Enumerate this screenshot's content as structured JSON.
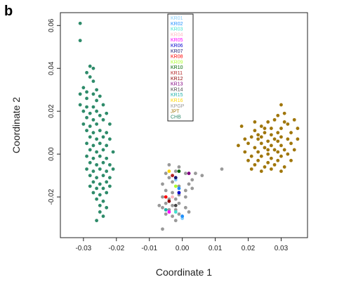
{
  "panel_label": "b",
  "chart_data": {
    "type": "scatter",
    "title": "",
    "xlabel": "Coordinate 1",
    "ylabel": "Coordinate 2",
    "xlim": [
      -0.037,
      0.038
    ],
    "ylim": [
      -0.039,
      0.066
    ],
    "x_ticks": [
      -0.03,
      -0.02,
      -0.01,
      0.0,
      0.01,
      0.02,
      0.03
    ],
    "x_tick_labels": [
      "-0.03",
      "-0.02",
      "-0.01",
      "0.00",
      "0.01",
      "0.02",
      "0.03"
    ],
    "y_ticks": [
      -0.02,
      0.0,
      0.02,
      0.04,
      0.06
    ],
    "y_tick_labels": [
      "-0.02",
      "0.00",
      "0.02",
      "0.04",
      "0.06"
    ],
    "grid": false,
    "legend_position": "top-center",
    "legend": [
      {
        "label": "KR01",
        "color": "#87cefa"
      },
      {
        "label": "KR02",
        "color": "#1e90ff"
      },
      {
        "label": "KR03",
        "color": "#40e0d0"
      },
      {
        "label": "KR04",
        "color": "#ffb6c1"
      },
      {
        "label": "KR05",
        "color": "#ff00ff"
      },
      {
        "label": "KR06",
        "color": "#0000cd"
      },
      {
        "label": "KR07",
        "color": "#191970"
      },
      {
        "label": "KR08",
        "color": "#ff0000"
      },
      {
        "label": "KR09",
        "color": "#adff2f"
      },
      {
        "label": "KR10",
        "color": "#006400"
      },
      {
        "label": "KR11",
        "color": "#b22222"
      },
      {
        "label": "KR12",
        "color": "#8b0000"
      },
      {
        "label": "KR13",
        "color": "#800080"
      },
      {
        "label": "KR14",
        "color": "#444444"
      },
      {
        "label": "KR15",
        "color": "#20b2aa"
      },
      {
        "label": "KR16",
        "color": "#ffd700"
      },
      {
        "label": "KPGP",
        "color": "#999999"
      },
      {
        "label": "JPT",
        "color": "#a0760a"
      },
      {
        "label": "CHB",
        "color": "#2e8b6a"
      }
    ],
    "series": [
      {
        "group": "CHB",
        "color": "#2e8b6a",
        "points": [
          [
            -0.031,
            0.061
          ],
          [
            -0.031,
            0.053
          ],
          [
            -0.028,
            0.041
          ],
          [
            -0.027,
            0.04
          ],
          [
            -0.029,
            0.038
          ],
          [
            -0.028,
            0.036
          ],
          [
            -0.027,
            0.034
          ],
          [
            -0.026,
            0.03
          ],
          [
            -0.03,
            0.031
          ],
          [
            -0.029,
            0.029
          ],
          [
            -0.031,
            0.028
          ],
          [
            -0.027,
            0.028
          ],
          [
            -0.025,
            0.027
          ],
          [
            -0.029,
            0.026
          ],
          [
            -0.026,
            0.025
          ],
          [
            -0.031,
            0.023
          ],
          [
            -0.029,
            0.022
          ],
          [
            -0.027,
            0.022
          ],
          [
            -0.024,
            0.023
          ],
          [
            -0.03,
            0.02
          ],
          [
            -0.028,
            0.019
          ],
          [
            -0.026,
            0.02
          ],
          [
            -0.025,
            0.018
          ],
          [
            -0.023,
            0.019
          ],
          [
            -0.029,
            0.017
          ],
          [
            -0.027,
            0.016
          ],
          [
            -0.024,
            0.016
          ],
          [
            -0.03,
            0.014
          ],
          [
            -0.028,
            0.013
          ],
          [
            -0.026,
            0.014
          ],
          [
            -0.022,
            0.014
          ],
          [
            -0.029,
            0.011
          ],
          [
            -0.027,
            0.01
          ],
          [
            -0.025,
            0.011
          ],
          [
            -0.023,
            0.01
          ],
          [
            -0.028,
            0.008
          ],
          [
            -0.026,
            0.007
          ],
          [
            -0.024,
            0.008
          ],
          [
            -0.022,
            0.007
          ],
          [
            -0.029,
            0.005
          ],
          [
            -0.027,
            0.004
          ],
          [
            -0.025,
            0.005
          ],
          [
            -0.023,
            0.004
          ],
          [
            -0.028,
            0.002
          ],
          [
            -0.026,
            0.001
          ],
          [
            -0.024,
            0.002
          ],
          [
            -0.021,
            0.001
          ],
          [
            -0.029,
            -0.001
          ],
          [
            -0.027,
            -0.002
          ],
          [
            -0.025,
            -0.001
          ],
          [
            -0.023,
            -0.002
          ],
          [
            -0.028,
            -0.004
          ],
          [
            -0.026,
            -0.005
          ],
          [
            -0.024,
            -0.004
          ],
          [
            -0.022,
            -0.005
          ],
          [
            -0.029,
            -0.007
          ],
          [
            -0.027,
            -0.008
          ],
          [
            -0.025,
            -0.007
          ],
          [
            -0.023,
            -0.008
          ],
          [
            -0.021,
            -0.007
          ],
          [
            -0.028,
            -0.01
          ],
          [
            -0.026,
            -0.011
          ],
          [
            -0.024,
            -0.01
          ],
          [
            -0.022,
            -0.011
          ],
          [
            -0.027,
            -0.013
          ],
          [
            -0.025,
            -0.014
          ],
          [
            -0.023,
            -0.013
          ],
          [
            -0.028,
            -0.015
          ],
          [
            -0.026,
            -0.016
          ],
          [
            -0.024,
            -0.016
          ],
          [
            -0.022,
            -0.015
          ],
          [
            -0.027,
            -0.018
          ],
          [
            -0.025,
            -0.019
          ],
          [
            -0.023,
            -0.018
          ],
          [
            -0.026,
            -0.021
          ],
          [
            -0.024,
            -0.022
          ],
          [
            -0.025,
            -0.024
          ],
          [
            -0.023,
            -0.025
          ],
          [
            -0.025,
            -0.027
          ],
          [
            -0.024,
            -0.029
          ],
          [
            -0.026,
            -0.031
          ]
        ]
      },
      {
        "group": "JPT",
        "color": "#a0760a",
        "points": [
          [
            0.03,
            0.023
          ],
          [
            0.031,
            0.019
          ],
          [
            0.029,
            0.018
          ],
          [
            0.034,
            0.016
          ],
          [
            0.022,
            0.015
          ],
          [
            0.026,
            0.015
          ],
          [
            0.028,
            0.016
          ],
          [
            0.032,
            0.014
          ],
          [
            0.024,
            0.013
          ],
          [
            0.027,
            0.012
          ],
          [
            0.03,
            0.012
          ],
          [
            0.035,
            0.012
          ],
          [
            0.018,
            0.013
          ],
          [
            0.022,
            0.011
          ],
          [
            0.025,
            0.01
          ],
          [
            0.029,
            0.01
          ],
          [
            0.033,
            0.01
          ],
          [
            0.021,
            0.008
          ],
          [
            0.024,
            0.008
          ],
          [
            0.027,
            0.009
          ],
          [
            0.03,
            0.008
          ],
          [
            0.019,
            0.007
          ],
          [
            0.023,
            0.007
          ],
          [
            0.026,
            0.006
          ],
          [
            0.029,
            0.006
          ],
          [
            0.032,
            0.007
          ],
          [
            0.035,
            0.007
          ],
          [
            0.02,
            0.005
          ],
          [
            0.024,
            0.005
          ],
          [
            0.027,
            0.004
          ],
          [
            0.03,
            0.004
          ],
          [
            0.033,
            0.005
          ],
          [
            0.017,
            0.004
          ],
          [
            0.022,
            0.003
          ],
          [
            0.025,
            0.003
          ],
          [
            0.028,
            0.002
          ],
          [
            0.031,
            0.002
          ],
          [
            0.034,
            0.002
          ],
          [
            0.019,
            0.001
          ],
          [
            0.023,
            0.001
          ],
          [
            0.026,
            0.0
          ],
          [
            0.029,
            0.001
          ],
          [
            0.032,
            0.0
          ],
          [
            0.021,
            -0.001
          ],
          [
            0.024,
            -0.001
          ],
          [
            0.027,
            -0.002
          ],
          [
            0.03,
            -0.001
          ],
          [
            0.02,
            -0.003
          ],
          [
            0.023,
            -0.003
          ],
          [
            0.026,
            -0.004
          ],
          [
            0.029,
            -0.003
          ],
          [
            0.033,
            -0.003
          ],
          [
            0.022,
            -0.005
          ],
          [
            0.025,
            -0.006
          ],
          [
            0.028,
            -0.005
          ],
          [
            0.031,
            -0.006
          ],
          [
            0.021,
            -0.007
          ],
          [
            0.024,
            -0.008
          ],
          [
            0.027,
            -0.007
          ],
          [
            0.03,
            -0.008
          ],
          [
            0.026,
            0.002
          ],
          [
            0.028,
            0.007
          ],
          [
            0.025,
            0.012
          ],
          [
            0.031,
            0.015
          ],
          [
            0.023,
            0.009
          ]
        ]
      },
      {
        "group": "KPGP",
        "color": "#999999",
        "points": [
          [
            0.012,
            -0.007
          ],
          [
            0.006,
            -0.01
          ],
          [
            0.003,
            -0.012
          ],
          [
            0.002,
            -0.014
          ],
          [
            0.003,
            -0.016
          ],
          [
            0.001,
            -0.017
          ],
          [
            -0.001,
            -0.015
          ],
          [
            -0.003,
            -0.013
          ],
          [
            -0.004,
            -0.011
          ],
          [
            -0.005,
            -0.009
          ],
          [
            -0.004,
            -0.005
          ],
          [
            -0.002,
            -0.008
          ],
          [
            -0.001,
            -0.006
          ],
          [
            0.001,
            -0.009
          ],
          [
            0.004,
            -0.009
          ],
          [
            -0.006,
            -0.014
          ],
          [
            -0.005,
            -0.017
          ],
          [
            -0.003,
            -0.018
          ],
          [
            -0.001,
            -0.019
          ],
          [
            0.001,
            -0.02
          ],
          [
            -0.002,
            -0.021
          ],
          [
            -0.004,
            -0.021
          ],
          [
            -0.006,
            -0.02
          ],
          [
            -0.005,
            -0.023
          ],
          [
            -0.003,
            -0.024
          ],
          [
            -0.001,
            -0.023
          ],
          [
            0.001,
            -0.025
          ],
          [
            -0.002,
            -0.026
          ],
          [
            -0.004,
            -0.026
          ],
          [
            -0.006,
            -0.025
          ],
          [
            -0.007,
            -0.024
          ],
          [
            -0.005,
            -0.028
          ],
          [
            -0.003,
            -0.029
          ],
          [
            -0.001,
            -0.028
          ],
          [
            0.0,
            -0.029
          ],
          [
            -0.006,
            -0.035
          ],
          [
            -0.002,
            -0.031
          ],
          [
            0.002,
            -0.027
          ]
        ]
      },
      {
        "group": "KR01",
        "color": "#87cefa",
        "points": [
          [
            -0.002,
            -0.012
          ],
          [
            0.0,
            -0.03
          ]
        ]
      },
      {
        "group": "KR02",
        "color": "#1e90ff",
        "points": [
          [
            0.0,
            -0.029
          ],
          [
            -0.001,
            -0.016
          ]
        ]
      },
      {
        "group": "KR03",
        "color": "#40e0d0",
        "points": [
          [
            -0.002,
            -0.027
          ]
        ]
      },
      {
        "group": "KR04",
        "color": "#ffb6c1",
        "points": [
          [
            -0.003,
            -0.02
          ]
        ]
      },
      {
        "group": "KR05",
        "color": "#ff00ff",
        "points": [
          [
            -0.004,
            -0.027
          ]
        ]
      },
      {
        "group": "KR06",
        "color": "#0000cd",
        "points": [
          [
            -0.001,
            -0.018
          ]
        ]
      },
      {
        "group": "KR07",
        "color": "#191970",
        "points": [
          [
            -0.002,
            -0.011
          ]
        ]
      },
      {
        "group": "KR08",
        "color": "#ff0000",
        "points": [
          [
            -0.005,
            -0.02
          ]
        ]
      },
      {
        "group": "KR09",
        "color": "#adff2f",
        "points": [
          [
            -0.002,
            -0.015
          ]
        ]
      },
      {
        "group": "KR10",
        "color": "#006400",
        "points": [
          [
            -0.001,
            -0.008
          ]
        ]
      },
      {
        "group": "KR11",
        "color": "#b22222",
        "points": [
          [
            -0.003,
            -0.01
          ]
        ]
      },
      {
        "group": "KR12",
        "color": "#8b0000",
        "points": [
          [
            -0.004,
            -0.022
          ]
        ]
      },
      {
        "group": "KR13",
        "color": "#800080",
        "points": [
          [
            0.002,
            -0.009
          ]
        ]
      },
      {
        "group": "KR14",
        "color": "#444444",
        "points": [
          [
            -0.002,
            -0.024
          ]
        ]
      },
      {
        "group": "KR15",
        "color": "#20b2aa",
        "points": [
          [
            -0.005,
            -0.026
          ]
        ]
      },
      {
        "group": "KR16",
        "color": "#ffd700",
        "points": [
          [
            -0.004,
            -0.008
          ]
        ]
      }
    ]
  }
}
